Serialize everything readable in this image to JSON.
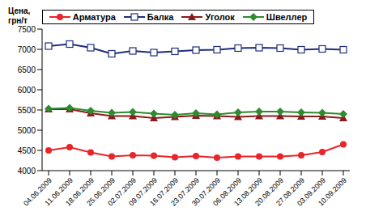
{
  "chart_data": {
    "type": "line",
    "y_label": "Цена, грн/т",
    "x": [
      "04.06.2009",
      "11.06.2009",
      "18.06.2009",
      "25.06.2009",
      "02.07.2009",
      "09.07.2009",
      "16.07.2009",
      "23.07.2009",
      "30.07.2009",
      "06.08.2009",
      "13.08.2009",
      "20.08.2009",
      "27.08.2009",
      "03.09.2009",
      "10.09.2009"
    ],
    "series": [
      {
        "name": "Арматура",
        "color": "#e8252a",
        "marker": "circle",
        "values": [
          4500,
          4580,
          4450,
          4350,
          4380,
          4370,
          4330,
          4360,
          4320,
          4350,
          4350,
          4350,
          4380,
          4460,
          4650
        ]
      },
      {
        "name": "Балка",
        "color": "#1f2e7a",
        "marker": "square",
        "values": [
          7080,
          7130,
          7040,
          6890,
          6960,
          6920,
          6950,
          6980,
          6990,
          7030,
          7040,
          7030,
          6990,
          7010,
          6990
        ]
      },
      {
        "name": "Уголок",
        "color": "#8b1a1a",
        "marker": "triangle",
        "values": [
          5520,
          5520,
          5420,
          5350,
          5350,
          5300,
          5330,
          5360,
          5350,
          5330,
          5350,
          5350,
          5340,
          5340,
          5300
        ]
      },
      {
        "name": "Швеллер",
        "color": "#2e8b2e",
        "marker": "diamond",
        "values": [
          5530,
          5550,
          5480,
          5430,
          5450,
          5410,
          5380,
          5420,
          5390,
          5440,
          5460,
          5460,
          5440,
          5430,
          5400
        ]
      }
    ],
    "ylim": [
      4000,
      7500
    ],
    "yticks": [
      4000,
      4500,
      5000,
      5500,
      6000,
      6500,
      7000,
      7500
    ],
    "grid": false,
    "legend": "top"
  }
}
